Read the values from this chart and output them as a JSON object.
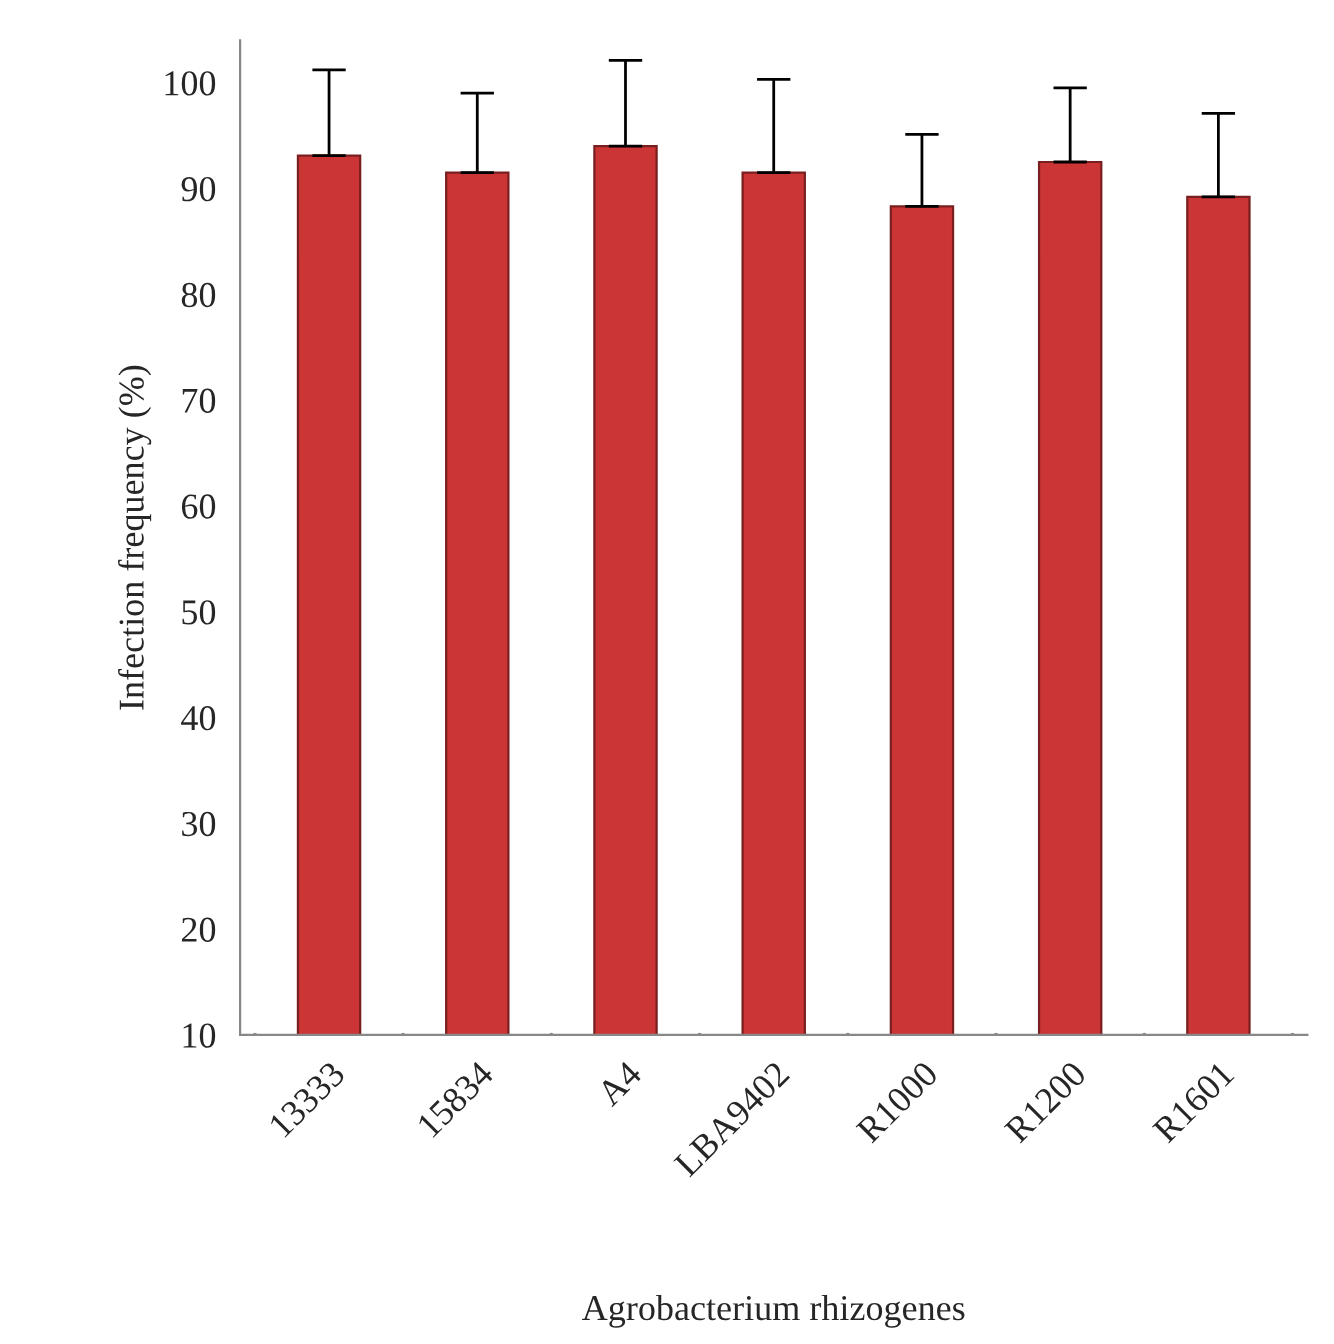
{
  "chart_data": {
    "type": "bar",
    "xlabel": "Agrobacterium rhizogenes",
    "ylabel": "Infection frequency (%)",
    "categories": [
      "13333",
      "15834",
      "A4",
      "LBA9402",
      "R1000",
      "R1200",
      "R1601"
    ],
    "series": [
      {
        "color": "#cc3535",
        "values": [
          93.1,
          91.5,
          94.0,
          91.5,
          88.3,
          92.5,
          89.2
        ],
        "errors": [
          [
            93.1,
            101.2
          ],
          [
            91.5,
            99.0
          ],
          [
            94.0,
            102.1
          ],
          [
            91.5,
            100.3
          ],
          [
            88.3,
            95.1
          ],
          [
            92.5,
            99.5
          ],
          [
            89.2,
            97.1
          ]
        ]
      }
    ],
    "ylim": [
      10,
      104
    ],
    "yticks": [
      10,
      20,
      30,
      40,
      50,
      60,
      70,
      80,
      90,
      100
    ],
    "grid": false,
    "legend": false
  }
}
